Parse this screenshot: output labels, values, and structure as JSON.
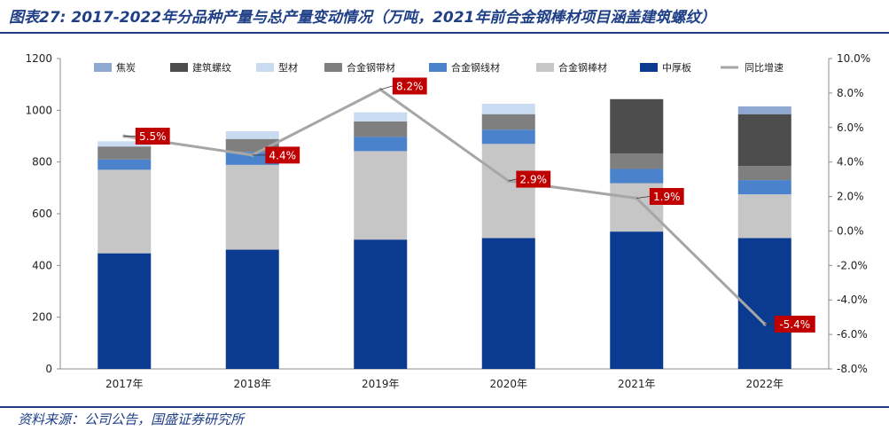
{
  "title": "图表27: 2017-2022年分品种产量与总产量变动情况（万吨，2021年前合金钢棒材项目涵盖建筑螺纹）",
  "source": "资料来源：公司公告，国盛证券研究所",
  "chart_data": {
    "type": "bar",
    "stacked": true,
    "categories": [
      "2017年",
      "2018年",
      "2019年",
      "2020年",
      "2021年",
      "2022年"
    ],
    "ylim": [
      0,
      1200
    ],
    "yticks": [
      "0",
      "200",
      "400",
      "600",
      "800",
      "1000",
      "1200"
    ],
    "y2lim": [
      -8.0,
      10.0
    ],
    "y2ticks": [
      "-8.0%",
      "-6.0%",
      "-4.0%",
      "-2.0%",
      "0.0%",
      "2.0%",
      "4.0%",
      "6.0%",
      "8.0%",
      "10.0%"
    ],
    "legend_position": "top",
    "series": [
      {
        "name": "中厚板",
        "color": "#0b3a91",
        "values": [
          447,
          461,
          500,
          506,
          531,
          506
        ]
      },
      {
        "name": "合金钢棒材",
        "color": "#c6c6c6",
        "values": [
          323,
          328,
          342,
          364,
          187,
          169
        ]
      },
      {
        "name": "合金钢线材",
        "color": "#4a83cc",
        "values": [
          40,
          50,
          55,
          55,
          55,
          55
        ]
      },
      {
        "name": "合金钢带材",
        "color": "#7f7f7f",
        "values": [
          50,
          50,
          60,
          60,
          60,
          55
        ]
      },
      {
        "name": "型材",
        "color": "#c9dbf0",
        "values": [
          20,
          30,
          35,
          40,
          0,
          0
        ]
      },
      {
        "name": "建筑螺纹",
        "color": "#4d4d4d",
        "values": [
          0,
          0,
          0,
          0,
          210,
          200
        ]
      },
      {
        "name": "焦炭",
        "color": "#8ea8d2",
        "values": [
          0,
          0,
          0,
          0,
          0,
          30
        ]
      }
    ],
    "line": {
      "name": "同比增速",
      "color": "#a6a6a6",
      "values": [
        5.5,
        4.4,
        8.2,
        2.9,
        1.9,
        -5.4
      ],
      "labels": [
        "5.5%",
        "4.4%",
        "8.2%",
        "2.9%",
        "1.9%",
        "-5.4%"
      ],
      "label_color": "#c00000"
    },
    "legend_order": [
      "焦炭",
      "建筑螺纹",
      "型材",
      "合金钢带材",
      "合金钢线材",
      "合金钢棒材",
      "中厚板",
      "同比增速"
    ]
  }
}
